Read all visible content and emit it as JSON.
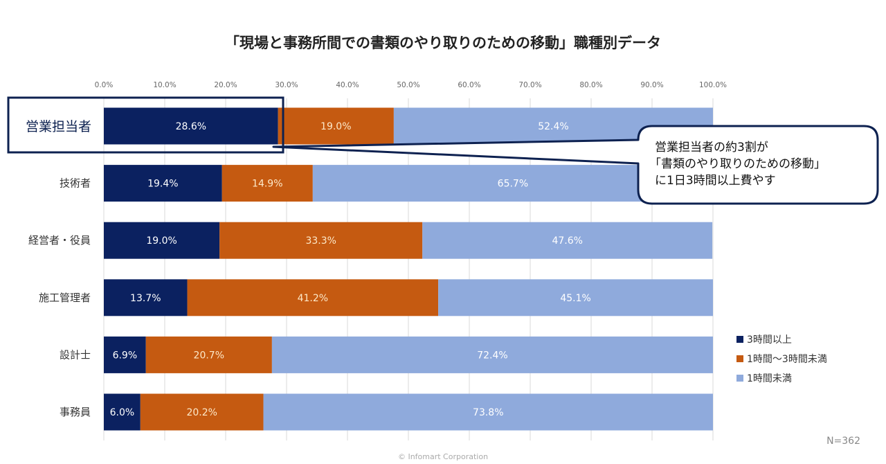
{
  "chart_data": {
    "type": "bar",
    "orientation": "horizontal-stacked-100",
    "title": "「現場と事務所間での書類のやり取りのための移動」職種別データ",
    "xlabel": "",
    "ylabel": "",
    "xlim": [
      0,
      100
    ],
    "x_ticks": [
      "0.0%",
      "10.0%",
      "20.0%",
      "30.0%",
      "40.0%",
      "50.0%",
      "60.0%",
      "70.0%",
      "80.0%",
      "90.0%",
      "100.0%"
    ],
    "grid": true,
    "categories": [
      "営業担当者",
      "技術者",
      "経営者・役員",
      "施工管理者",
      "設計士",
      "事務員"
    ],
    "highlighted_category": "営業担当者",
    "series": [
      {
        "name": "3時間以上",
        "color": "#0b2160",
        "values": [
          28.6,
          19.4,
          19.0,
          13.7,
          6.9,
          6.0
        ]
      },
      {
        "name": "1時間〜3時間未満",
        "color": "#c55a11",
        "values": [
          19.0,
          14.9,
          33.3,
          41.2,
          20.7,
          20.2
        ]
      },
      {
        "name": "1時間未満",
        "color": "#8faadc",
        "values": [
          52.4,
          65.7,
          47.6,
          45.1,
          72.4,
          73.8
        ]
      }
    ],
    "legend_position": "bottom-right",
    "annotation": {
      "lines": [
        "営業担当者の約3割が",
        "「書類のやり取りのための移動」",
        "に1日3時間以上費やす"
      ]
    },
    "sample_size": "N=362",
    "footer": "© Infomart Corporation"
  }
}
